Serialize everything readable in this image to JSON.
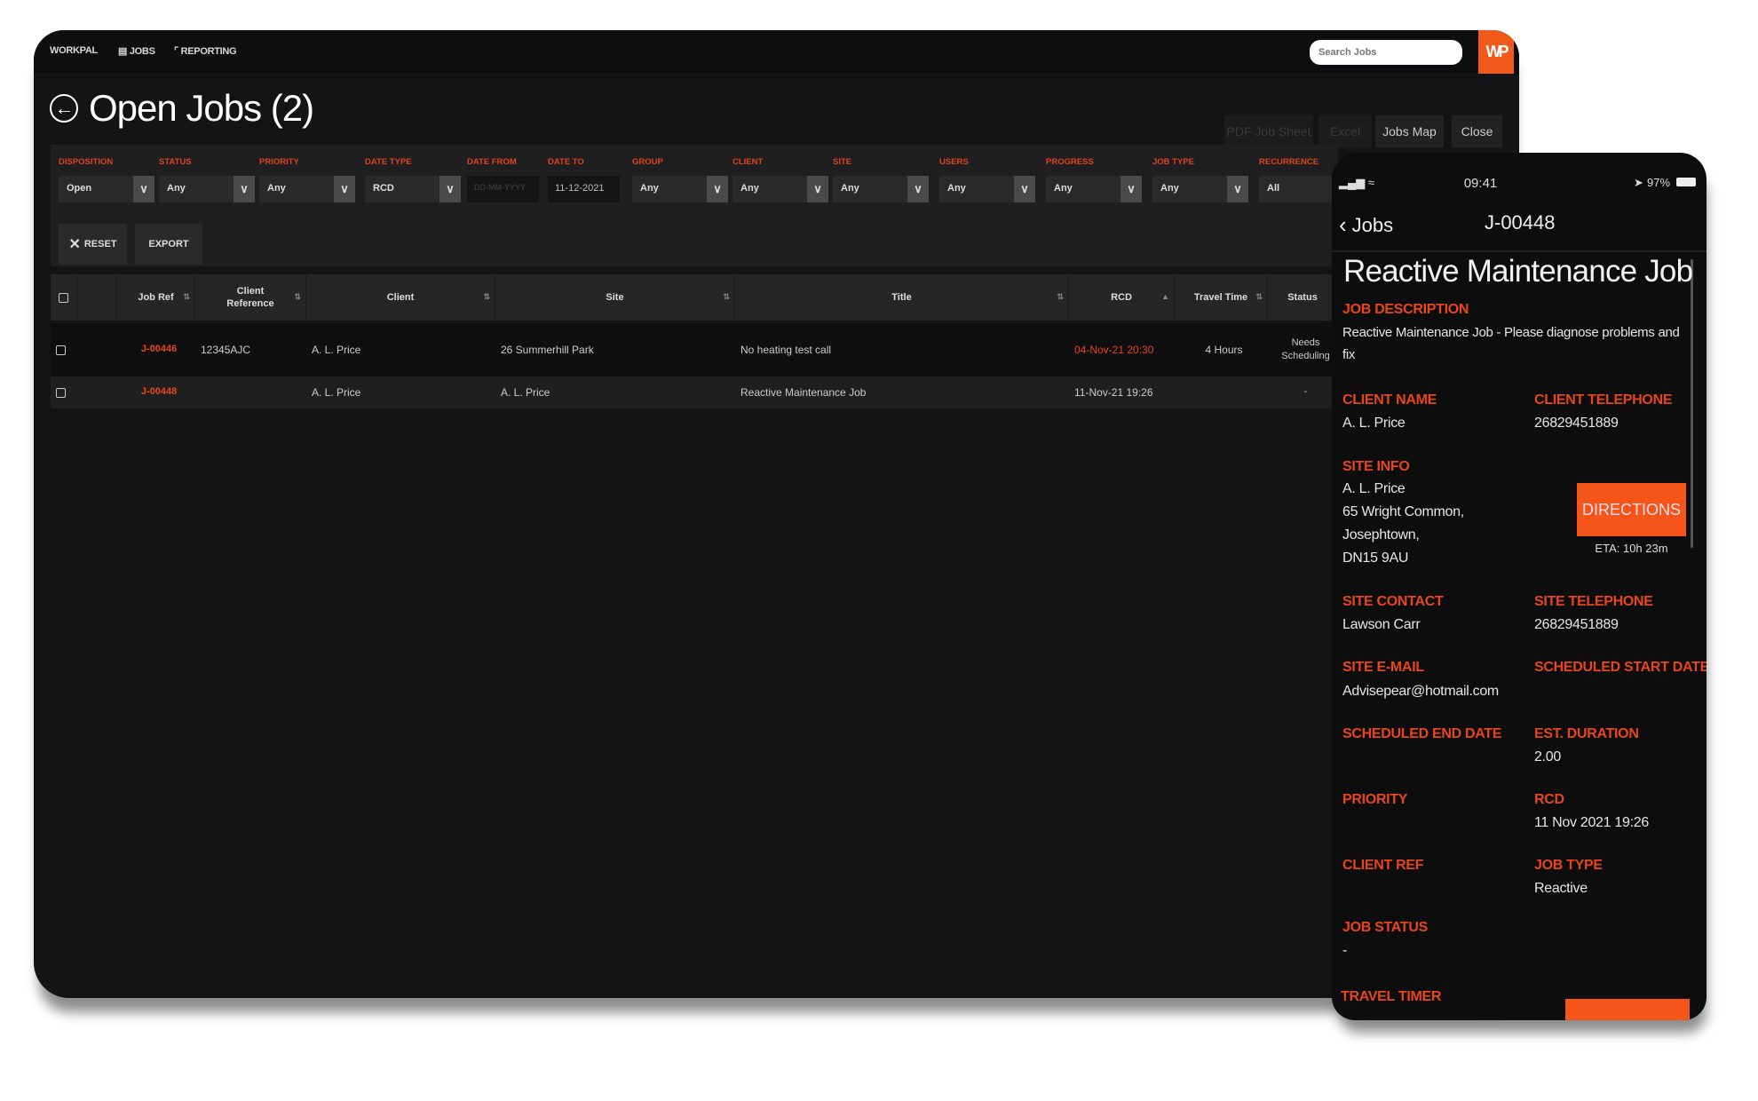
{
  "nav": {
    "brand": "WORKPAL",
    "jobs": "JOBS",
    "reporting": "REPORTING",
    "search_placeholder": "Search Jobs",
    "logo": "WP"
  },
  "page": {
    "title": "Open Jobs (2)"
  },
  "actions": {
    "pdf": "PDF Job Sheet",
    "excel": "Excel",
    "map": "Jobs Map",
    "close": "Close"
  },
  "filters": [
    {
      "label": "DISPOSITION",
      "value": "Open",
      "type": "select"
    },
    {
      "label": "STATUS",
      "value": "Any",
      "type": "select"
    },
    {
      "label": "PRIORITY",
      "value": "Any",
      "type": "select"
    },
    {
      "label": "DATE TYPE",
      "value": "RCD",
      "type": "select"
    },
    {
      "label": "DATE FROM",
      "placeholder": "DD-MM-YYYY",
      "type": "date"
    },
    {
      "label": "DATE TO",
      "value": "11-12-2021",
      "type": "date"
    },
    {
      "label": "GROUP",
      "value": "Any",
      "type": "select"
    },
    {
      "label": "CLIENT",
      "value": "Any",
      "type": "select"
    },
    {
      "label": "SITE",
      "value": "Any",
      "type": "select"
    },
    {
      "label": "USERS",
      "value": "Any",
      "type": "select"
    },
    {
      "label": "PROGRESS",
      "value": "Any",
      "type": "select"
    },
    {
      "label": "JOB TYPE",
      "value": "Any",
      "type": "select"
    },
    {
      "label": "RECURRENCE",
      "value": "All",
      "type": "select"
    }
  ],
  "filter_buttons": {
    "reset": "RESET",
    "export": "EXPORT"
  },
  "table": {
    "columns": [
      "",
      "",
      "Job Ref",
      "Client Reference",
      "Client",
      "Site",
      "Title",
      "RCD",
      "Travel Time",
      "Status"
    ],
    "rows": [
      [
        "",
        "",
        "J-00446",
        "12345AJC",
        "A. L. Price",
        "26 Summerhill Park",
        "No heating test call",
        "04-Nov-21 20:30",
        "4 Hours",
        "Needs Scheduling"
      ],
      [
        "",
        "",
        "J-00448",
        "",
        "A. L. Price",
        "A. L. Price",
        "Reactive Maintenance Job",
        "11-Nov-21 19:26",
        "",
        "-"
      ]
    ]
  },
  "colors": {
    "accent": "#f25a1b",
    "label": "#e8461a",
    "background": "#141416"
  },
  "phone": {
    "status": {
      "time": "09:41",
      "battery": "97%"
    },
    "nav": {
      "back": "Jobs",
      "title": "J-00448"
    },
    "heading": "Reactive Maintenance Job",
    "job_description": {
      "label": "JOB DESCRIPTION",
      "value": "Reactive Maintenance Job - Please diagnose problems and fix"
    },
    "client_name": {
      "label": "CLIENT NAME",
      "value": "A. L. Price"
    },
    "client_telephone": {
      "label": "CLIENT TELEPHONE",
      "value": "26829451889"
    },
    "site_info": {
      "label": "SITE INFO",
      "lines": [
        "A. L. Price",
        "65 Wright Common,",
        "Josephtown,",
        "DN15 9AU"
      ]
    },
    "directions": {
      "label": "DIRECTIONS",
      "eta": "ETA: 10h 23m"
    },
    "site_contact": {
      "label": "SITE CONTACT",
      "value": "Lawson Carr"
    },
    "site_telephone": {
      "label": "SITE TELEPHONE",
      "value": "26829451889"
    },
    "site_email": {
      "label": "SITE E-MAIL",
      "value": "Advisepear@hotmail.com"
    },
    "scheduled_start": {
      "label": "SCHEDULED START DATE"
    },
    "scheduled_end": {
      "label": "SCHEDULED END DATE"
    },
    "est_duration": {
      "label": "EST. DURATION",
      "value": "2.00"
    },
    "priority": {
      "label": "PRIORITY"
    },
    "rcd": {
      "label": "RCD",
      "value": "11 Nov 2021 19:26"
    },
    "client_ref": {
      "label": "CLIENT REF"
    },
    "job_type": {
      "label": "JOB TYPE",
      "value": "Reactive"
    },
    "job_status": {
      "label": "JOB STATUS",
      "value": "-"
    },
    "travel_timer": {
      "label": "TRAVEL TIMER"
    }
  }
}
